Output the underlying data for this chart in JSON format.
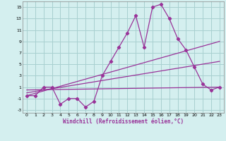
{
  "xlabel": "Windchill (Refroidissement éolien,°C)",
  "background_color": "#d4efef",
  "grid_color": "#a8d0d0",
  "line_color": "#993399",
  "xlim": [
    -0.5,
    23.5
  ],
  "ylim": [
    -3.5,
    16.0
  ],
  "xticks": [
    0,
    1,
    2,
    3,
    4,
    5,
    6,
    7,
    8,
    9,
    10,
    11,
    12,
    13,
    14,
    15,
    16,
    17,
    18,
    19,
    20,
    21,
    22,
    23
  ],
  "yticks": [
    -3,
    -1,
    1,
    3,
    5,
    7,
    9,
    11,
    13,
    15
  ],
  "series1_x": [
    0,
    1,
    2,
    3,
    4,
    5,
    6,
    7,
    8,
    9,
    10,
    11,
    12,
    13,
    14,
    15,
    16,
    17,
    18,
    19,
    20,
    21,
    22,
    23
  ],
  "series1_y": [
    -0.5,
    -0.5,
    1.0,
    1.0,
    -2.0,
    -1.0,
    -1.0,
    -2.5,
    -1.5,
    3.0,
    5.5,
    8.0,
    10.5,
    13.5,
    8.0,
    15.0,
    15.5,
    13.0,
    9.5,
    7.5,
    4.5,
    1.5,
    0.5,
    1.0
  ],
  "series2_x": [
    0,
    23
  ],
  "series2_y": [
    0.5,
    1.0
  ],
  "series3_x": [
    0,
    23
  ],
  "series3_y": [
    -0.5,
    9.0
  ],
  "series4_x": [
    0,
    23
  ],
  "series4_y": [
    0.0,
    5.5
  ]
}
